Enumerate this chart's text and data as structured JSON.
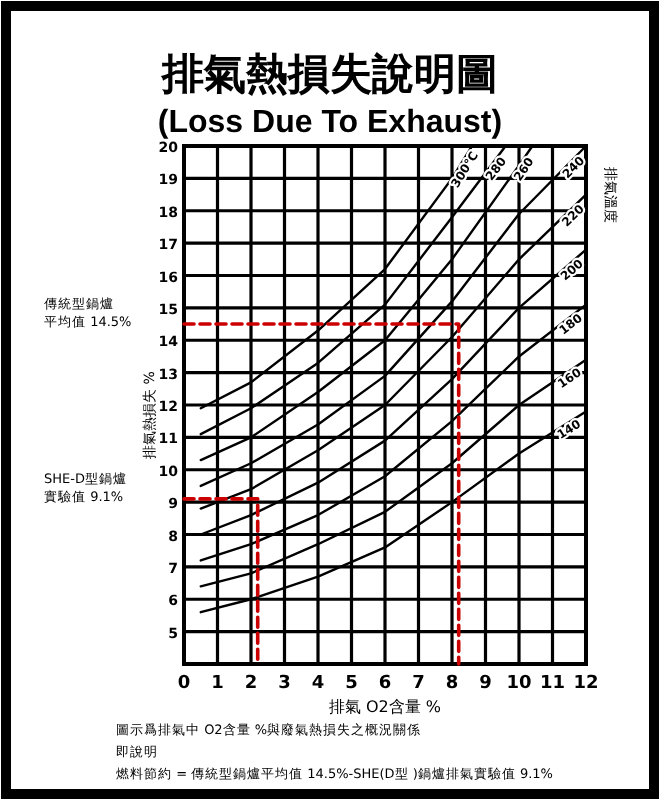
{
  "chart_data": {
    "type": "line",
    "title": "排氣熱損失說明圖",
    "subtitle": "(Loss Due To Exhaust)",
    "xlabel": "排氣 O2含量 %",
    "ylabel": "排氣熱損失 %",
    "legend_title": "排氣溫度",
    "xlim": [
      0,
      12
    ],
    "ylim": [
      4,
      20
    ],
    "xticks": [
      0,
      1,
      2,
      3,
      4,
      5,
      6,
      7,
      8,
      9,
      10,
      11,
      12
    ],
    "yticks": [
      5,
      6,
      7,
      8,
      9,
      10,
      11,
      12,
      13,
      14,
      15,
      16,
      17,
      18,
      19,
      20
    ],
    "grid": true,
    "marker": "none",
    "series": [
      {
        "name": "300℃",
        "color": "#000000",
        "x": [
          0.5,
          2,
          4,
          6,
          8,
          8.6
        ],
        "values": [
          11.9,
          12.7,
          14.3,
          16.2,
          19.0,
          20
        ]
      },
      {
        "name": "280",
        "color": "#000000",
        "x": [
          0.5,
          2,
          4,
          6,
          8,
          9.6
        ],
        "values": [
          11.1,
          11.9,
          13.3,
          15.1,
          17.8,
          20
        ]
      },
      {
        "name": "260",
        "color": "#000000",
        "x": [
          0.5,
          2,
          4,
          6,
          8,
          10,
          10.4
        ],
        "values": [
          10.3,
          11.0,
          12.4,
          14.0,
          16.5,
          19.4,
          20
        ]
      },
      {
        "name": "240",
        "color": "#000000",
        "x": [
          0.5,
          2,
          4,
          6,
          8,
          10,
          12
        ],
        "values": [
          9.5,
          10.2,
          11.4,
          12.9,
          15.2,
          17.9,
          20.0
        ]
      },
      {
        "name": "220",
        "color": "#000000",
        "x": [
          0.5,
          2,
          4,
          6,
          8,
          10,
          12
        ],
        "values": [
          8.8,
          9.4,
          10.6,
          12.0,
          14.1,
          16.5,
          18.5
        ]
      },
      {
        "name": "200",
        "color": "#000000",
        "x": [
          0.5,
          2,
          4,
          6,
          8,
          10,
          12
        ],
        "values": [
          8.0,
          8.6,
          9.6,
          10.9,
          12.8,
          15.0,
          16.8
        ]
      },
      {
        "name": "180",
        "color": "#000000",
        "x": [
          0.5,
          2,
          4,
          6,
          8,
          10,
          12
        ],
        "values": [
          7.2,
          7.7,
          8.6,
          9.8,
          11.5,
          13.5,
          15.1
        ]
      },
      {
        "name": "160",
        "color": "#000000",
        "x": [
          0.5,
          2,
          4,
          6,
          8,
          10,
          12
        ],
        "values": [
          6.4,
          6.8,
          7.7,
          8.7,
          10.2,
          12.0,
          13.4
        ]
      },
      {
        "name": "140",
        "color": "#000000",
        "x": [
          0.5,
          2,
          4,
          6,
          8,
          10,
          12
        ],
        "values": [
          5.6,
          6.0,
          6.7,
          7.6,
          9.0,
          10.5,
          11.8
        ]
      },
      {
        "color": "#cc0000",
        "line_style": "dashed",
        "x": [
          0,
          8.2,
          8.2
        ],
        "values": [
          14.5,
          14.5,
          4
        ]
      },
      {
        "color": "#cc0000",
        "line_style": "dashed",
        "x": [
          0,
          2.2,
          2.2
        ],
        "values": [
          9.1,
          9.1,
          4
        ]
      }
    ],
    "annotations": [
      "傳統型鍋爐",
      "平均值 14.5%",
      "SHE-D型鍋爐",
      "實驗值 9.1%",
      "圖示爲排氣中 O2含量 %與廢氣熱損失之概況關係",
      "即說明",
      "燃料節約 = 傳統型鍋爐平均值 14.5%-SHE(D型 )鍋爐排氣實驗值 9.1%"
    ]
  }
}
